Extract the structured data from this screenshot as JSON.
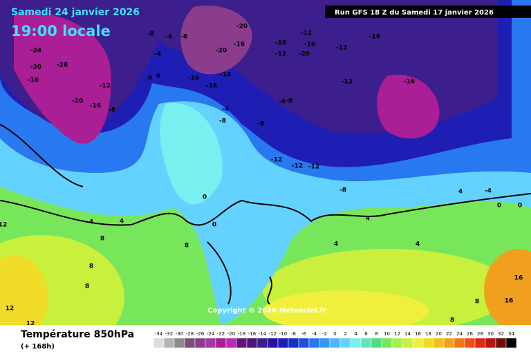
{
  "header": {
    "date": "Samedi 24 janvier 2026",
    "time": "19:00 locale",
    "run": "Run GFS 18 Z du Samedi 17 janvier 2026"
  },
  "map": {
    "labels": [
      "-24",
      "-20",
      "-28",
      "-16",
      "-20",
      "-8",
      "-8",
      "-4",
      "-8",
      "-4",
      "-12",
      "-16",
      "0",
      "0",
      "-20",
      "-16",
      "-20",
      "-16",
      "-16",
      "-13",
      "-12",
      "-16",
      "-12",
      "-16",
      "-20",
      "-12",
      "-16",
      "-12",
      "-16",
      "-4",
      "-8",
      "-8",
      "-4",
      "-8",
      "-12",
      "-12",
      "-12",
      "-8",
      "0",
      "0",
      "4",
      "8",
      "8",
      "8",
      "12",
      "12",
      "12",
      "4",
      "8",
      "4",
      "4",
      "4",
      "4",
      "-4",
      "0",
      "0",
      "16",
      "16",
      "8",
      "8"
    ]
  },
  "copyright": "Copyright © 2026 Meteociel.fr",
  "legend": {
    "title": "Température 850hPa",
    "lead": "(+ 168h)",
    "ticks": [
      -34,
      -32,
      -30,
      -28,
      -26,
      -24,
      -22,
      -20,
      -18,
      -16,
      -14,
      -12,
      -10,
      -8,
      -6,
      -4,
      -2,
      0,
      2,
      4,
      6,
      8,
      10,
      12,
      14,
      16,
      18,
      20,
      22,
      24,
      26,
      28,
      30,
      32,
      34
    ],
    "colors": [
      "#dcdcdc",
      "#b4b4b4",
      "#8c8c8c",
      "#785078",
      "#8c3c8c",
      "#a03ca0",
      "#aa1e96",
      "#be28b4",
      "#641478",
      "#4b1478",
      "#3c1e8c",
      "#2814a0",
      "#1e1eb4",
      "#1432c8",
      "#1e50dc",
      "#2878f0",
      "#3c96fa",
      "#50b4ff",
      "#64d2ff",
      "#78f0f0",
      "#64e6b4",
      "#50dc82",
      "#78e65a",
      "#a0f050",
      "#c8f03c",
      "#f0f03c",
      "#f0dc28",
      "#f0be1e",
      "#f0a01e",
      "#f07814",
      "#f05014",
      "#dc2814",
      "#b41414",
      "#780a0a",
      "#000000"
    ]
  }
}
